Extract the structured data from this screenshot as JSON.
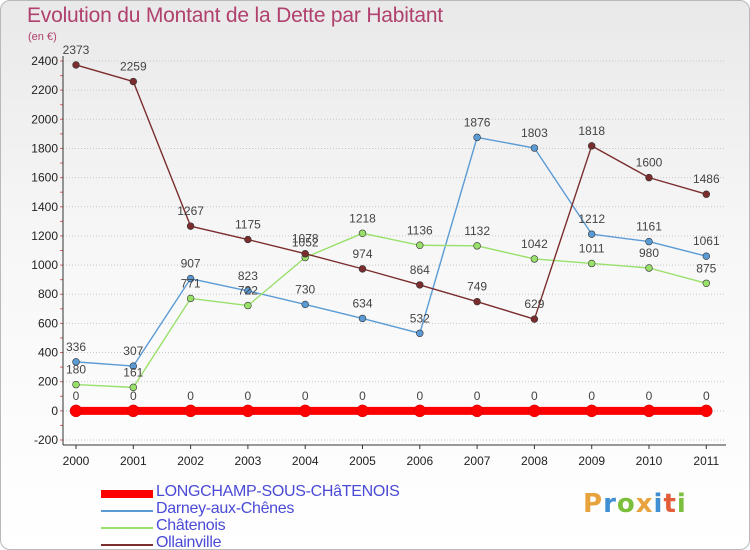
{
  "title": "Evolution du Montant de la Dette par Habitant",
  "unit_label": "(en €)",
  "logo": {
    "text": "Proxiti",
    "letters": [
      "P",
      "r",
      "o",
      "x",
      "i",
      "t",
      "i"
    ],
    "colors": [
      "#e8a33d",
      "#3f8fd2",
      "#7cbf3c",
      "#e8a33d",
      "#3f8fd2",
      "#e35d3b",
      "#7cbf3c"
    ]
  },
  "chart_data": {
    "type": "line",
    "title": "Evolution du Montant de la Dette par Habitant",
    "ylabel": "(en €)",
    "x": [
      "2000",
      "2001",
      "2002",
      "2003",
      "2004",
      "2005",
      "2006",
      "2007",
      "2008",
      "2009",
      "2010",
      "2011"
    ],
    "ylim": [
      -200,
      2400
    ],
    "yticks": [
      -200,
      0,
      200,
      400,
      600,
      800,
      1000,
      1200,
      1400,
      1600,
      1800,
      2000,
      2200,
      2400
    ],
    "grid": "horizontal dotted",
    "legend_position": "bottom-left",
    "series": [
      {
        "name": "LONGCHAMP-SOUS-CHâTENOIS",
        "color": "#ff0000",
        "style": "thick",
        "values": [
          0,
          0,
          0,
          0,
          0,
          0,
          0,
          0,
          0,
          0,
          0,
          0
        ]
      },
      {
        "name": "Darney-aux-Chênes",
        "color": "#5b9bd5",
        "values": [
          336,
          307,
          907,
          823,
          730,
          634,
          532,
          1876,
          1803,
          1212,
          1161,
          1061
        ]
      },
      {
        "name": "Châtenois",
        "color": "#99e06b",
        "values": [
          180,
          161,
          771,
          722,
          1052,
          1218,
          1136,
          1132,
          1042,
          1011,
          980,
          875
        ]
      },
      {
        "name": "Ollainville",
        "color": "#7b2d2d",
        "values": [
          2373,
          2259,
          1267,
          1175,
          1078,
          974,
          864,
          749,
          629,
          1818,
          1600,
          1486
        ]
      }
    ]
  }
}
